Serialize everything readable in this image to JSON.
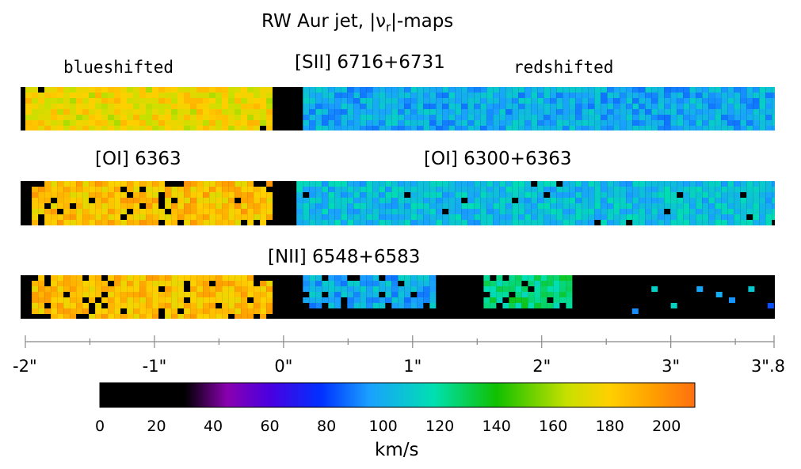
{
  "title": {
    "prefix": "RW Aur jet, |ν",
    "sub": "r",
    "suffix": "|-maps"
  },
  "labels": {
    "blue": "blueshifted",
    "red": "redshifted",
    "s2": "[SII] 6716+6731",
    "o1_blue": "[OI] 6363",
    "o1_red": "[OI] 6300+6363",
    "n2": "[NII] 6548+6583"
  },
  "chart_data": {
    "type": "heatmap",
    "x_axis": {
      "range": [
        -2,
        3.8
      ],
      "ticks": [
        {
          "value": -2,
          "label": "-2\""
        },
        {
          "value": -1,
          "label": "-1\""
        },
        {
          "value": 0,
          "label": "0\""
        },
        {
          "value": 1,
          "label": "1\""
        },
        {
          "value": 2,
          "label": "2\""
        },
        {
          "value": 3,
          "label": "3\""
        },
        {
          "value": 3.8,
          "label": "3\".8"
        }
      ]
    },
    "colorbar": {
      "label": "km/s",
      "range": [
        0,
        210
      ],
      "ticks": [
        0,
        20,
        40,
        60,
        80,
        100,
        120,
        140,
        160,
        180,
        200
      ],
      "stops": [
        {
          "v": 0,
          "color": "#000000"
        },
        {
          "v": 30,
          "color": "#000000"
        },
        {
          "v": 45,
          "color": "#8a00b0"
        },
        {
          "v": 60,
          "color": "#4a00e0"
        },
        {
          "v": 78,
          "color": "#0030ff"
        },
        {
          "v": 95,
          "color": "#1aa0ff"
        },
        {
          "v": 118,
          "color": "#00e0b0"
        },
        {
          "v": 140,
          "color": "#10c000"
        },
        {
          "v": 165,
          "color": "#c8e000"
        },
        {
          "v": 180,
          "color": "#ffd000"
        },
        {
          "v": 195,
          "color": "#ffa000"
        },
        {
          "v": 210,
          "color": "#ff7010"
        }
      ]
    },
    "maps": [
      {
        "line": "[SII] 6716+6731",
        "blue": {
          "x_range": [
            -2,
            -0.1
          ],
          "mean_velocity": 175
        },
        "red": {
          "x_range": [
            0.15,
            3.8
          ],
          "mean_velocity": 100
        }
      },
      {
        "line": "[OI] 6363 / [OI] 6300+6363",
        "blue": {
          "x_range": [
            -2,
            -0.1
          ],
          "mean_velocity": 185
        },
        "red": {
          "x_range": [
            0.1,
            3.8
          ],
          "mean_velocity": 105
        }
      },
      {
        "line": "[NII] 6548+6583",
        "blue": {
          "x_range": [
            -2,
            -0.1
          ],
          "mean_velocity": 185
        },
        "red_segments": [
          {
            "x_range": [
              0.15,
              1.15
            ],
            "mean_velocity": 100
          },
          {
            "x_range": [
              1.55,
              2.2
            ],
            "mean_velocity": 125
          }
        ]
      }
    ]
  }
}
